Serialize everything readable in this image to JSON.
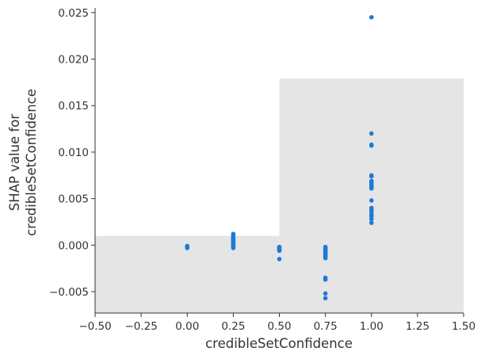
{
  "chart_data": {
    "type": "scatter",
    "title": "",
    "xlabel": "credibleSetConfidence",
    "ylabel_lines": [
      "SHAP value for",
      "credibleSetConfidence"
    ],
    "xlim": [
      -0.5,
      1.5
    ],
    "ylim": [
      -0.0073,
      0.0255
    ],
    "x_ticks": [
      -0.5,
      -0.25,
      0.0,
      0.25,
      0.5,
      0.75,
      1.0,
      1.25,
      1.5
    ],
    "x_tick_labels": [
      "−0.50",
      "−0.25",
      "0.00",
      "0.25",
      "0.50",
      "0.75",
      "1.00",
      "1.25",
      "1.50"
    ],
    "y_ticks": [
      -0.005,
      0.0,
      0.005,
      0.01,
      0.015,
      0.02,
      0.025
    ],
    "y_tick_labels": [
      "−0.005",
      "0.000",
      "0.005",
      "0.010",
      "0.015",
      "0.020",
      "0.025"
    ],
    "grid": false,
    "legend": "none",
    "point_color": "#1e7ad6",
    "background_bands": [
      {
        "x_from": -0.5,
        "x_to": 0.5,
        "y_top": 0.001,
        "color": "#e5e5e5"
      },
      {
        "x_from": 0.5,
        "x_to": 1.5,
        "y_top": 0.0179,
        "color": "#e5e5e5"
      }
    ],
    "points": [
      {
        "x": 0.0,
        "y": -0.0002
      },
      {
        "x": 0.0,
        "y": -0.0001
      },
      {
        "x": 0.0,
        "y": -0.0003
      },
      {
        "x": 0.0,
        "y": -0.0002
      },
      {
        "x": 0.0,
        "y": -0.0001
      },
      {
        "x": 0.25,
        "y": 0.0012
      },
      {
        "x": 0.25,
        "y": 0.001
      },
      {
        "x": 0.25,
        "y": 0.0008
      },
      {
        "x": 0.25,
        "y": 0.0007
      },
      {
        "x": 0.25,
        "y": 0.0006
      },
      {
        "x": 0.25,
        "y": 0.0005
      },
      {
        "x": 0.25,
        "y": 0.0004
      },
      {
        "x": 0.25,
        "y": 0.0003
      },
      {
        "x": 0.25,
        "y": 0.0002
      },
      {
        "x": 0.25,
        "y": 0.0001
      },
      {
        "x": 0.25,
        "y": 0.0
      },
      {
        "x": 0.25,
        "y": -0.0001
      },
      {
        "x": 0.25,
        "y": -0.0002
      },
      {
        "x": 0.25,
        "y": -0.0003
      },
      {
        "x": 0.5,
        "y": -0.0002
      },
      {
        "x": 0.5,
        "y": -0.0003
      },
      {
        "x": 0.5,
        "y": -0.0004
      },
      {
        "x": 0.5,
        "y": -0.0005
      },
      {
        "x": 0.5,
        "y": -0.0006
      },
      {
        "x": 0.5,
        "y": -0.0015
      },
      {
        "x": 0.75,
        "y": -0.0002
      },
      {
        "x": 0.75,
        "y": -0.0003
      },
      {
        "x": 0.75,
        "y": -0.0004
      },
      {
        "x": 0.75,
        "y": -0.0005
      },
      {
        "x": 0.75,
        "y": -0.0006
      },
      {
        "x": 0.75,
        "y": -0.0007
      },
      {
        "x": 0.75,
        "y": -0.0008
      },
      {
        "x": 0.75,
        "y": -0.0009
      },
      {
        "x": 0.75,
        "y": -0.001
      },
      {
        "x": 0.75,
        "y": -0.0011
      },
      {
        "x": 0.75,
        "y": -0.0012
      },
      {
        "x": 0.75,
        "y": -0.0013
      },
      {
        "x": 0.75,
        "y": -0.0014
      },
      {
        "x": 0.75,
        "y": -0.0035
      },
      {
        "x": 0.75,
        "y": -0.0037
      },
      {
        "x": 0.75,
        "y": -0.0052
      },
      {
        "x": 0.75,
        "y": -0.0057
      },
      {
        "x": 1.0,
        "y": 0.0245
      },
      {
        "x": 1.0,
        "y": 0.012
      },
      {
        "x": 1.0,
        "y": 0.0108
      },
      {
        "x": 1.0,
        "y": 0.0107
      },
      {
        "x": 1.0,
        "y": 0.0075
      },
      {
        "x": 1.0,
        "y": 0.0074
      },
      {
        "x": 1.0,
        "y": 0.0069
      },
      {
        "x": 1.0,
        "y": 0.0067
      },
      {
        "x": 1.0,
        "y": 0.0065
      },
      {
        "x": 1.0,
        "y": 0.0063
      },
      {
        "x": 1.0,
        "y": 0.0062
      },
      {
        "x": 1.0,
        "y": 0.0061
      },
      {
        "x": 1.0,
        "y": 0.0048
      },
      {
        "x": 1.0,
        "y": 0.004
      },
      {
        "x": 1.0,
        "y": 0.0038
      },
      {
        "x": 1.0,
        "y": 0.0036
      },
      {
        "x": 1.0,
        "y": 0.0033
      },
      {
        "x": 1.0,
        "y": 0.0031
      },
      {
        "x": 1.0,
        "y": 0.0028
      },
      {
        "x": 1.0,
        "y": 0.0024
      }
    ]
  }
}
